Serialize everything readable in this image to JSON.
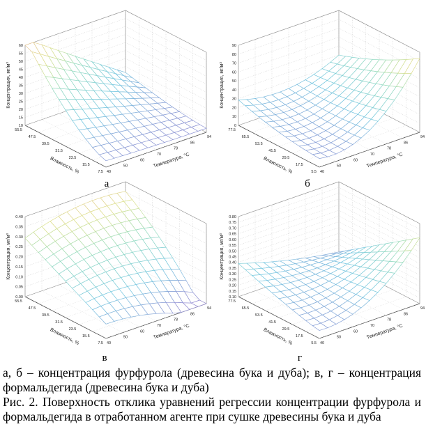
{
  "figure": {
    "panels": [
      {
        "id": "a",
        "label": "а",
        "zlabel": "Концентрация, мг/м³",
        "xlabel": "Температура, °С",
        "ylabel": "Влажность, %",
        "z_ticks": [
          "60",
          "55",
          "50",
          "45",
          "40",
          "35",
          "30",
          "25",
          "20",
          "15",
          "10"
        ],
        "x_ticks": [
          "40",
          "50",
          "60",
          "70",
          "78",
          "86",
          "94"
        ],
        "y_ticks": [
          "55.5",
          "47.5",
          "39.5",
          "31.5",
          "23.5",
          "15.5",
          "7.5"
        ],
        "surface": {
          "type": "tilt",
          "z_range": [
            10,
            60
          ]
        }
      },
      {
        "id": "b",
        "label": "б",
        "zlabel": "Концентрация, мг/м³",
        "xlabel": "Температура, °С",
        "ylabel": "Влажность, %",
        "z_ticks": [
          "90",
          "80",
          "70",
          "60",
          "50",
          "40",
          "30",
          "20",
          "10",
          "0"
        ],
        "x_ticks": [
          "40",
          "50",
          "60",
          "70",
          "78",
          "86",
          "94"
        ],
        "y_ticks": [
          "77.5",
          "65.5",
          "53.5",
          "41.5",
          "29.5",
          "17.5",
          "5.5"
        ],
        "surface": {
          "type": "bowl",
          "z_range": [
            0,
            90
          ]
        }
      },
      {
        "id": "v",
        "label": "в",
        "zlabel": "Концентрация, мг/м³",
        "xlabel": "Температура, °С",
        "ylabel": "Влажность, %",
        "z_ticks": [
          "0.40",
          "0.35",
          "0.30",
          "0.25",
          "0.20",
          "0.15",
          "0.10",
          "0.05",
          "0.00"
        ],
        "x_ticks": [
          "40",
          "50",
          "60",
          "70",
          "78",
          "86",
          "94"
        ],
        "y_ticks": [
          "55.5",
          "47.5",
          "39.5",
          "31.5",
          "23.5",
          "15.5",
          "7.5"
        ],
        "surface": {
          "type": "dome",
          "z_range": [
            0,
            0.4
          ]
        }
      },
      {
        "id": "g",
        "label": "г",
        "zlabel": "Концентрация, мг/м³",
        "xlabel": "Температура, °С",
        "ylabel": "Влажность, %",
        "z_ticks": [
          "0.80",
          "0.75",
          "0.70",
          "0.65",
          "0.60",
          "0.55",
          "0.50",
          "0.45",
          "0.40",
          "0.35",
          "0.30",
          "0.25",
          "0.20",
          "0.15",
          "0.10"
        ],
        "x_ticks": [
          "40",
          "50",
          "60",
          "70",
          "78",
          "86",
          "94"
        ],
        "y_ticks": [
          "77.5",
          "65.5",
          "53.5",
          "41.5",
          "29.5",
          "17.5",
          "5.5"
        ],
        "surface": {
          "type": "bowl2",
          "z_range": [
            0.1,
            0.8
          ]
        }
      }
    ]
  },
  "caption": {
    "line1": "а, б – концентрация фурфурола (древесина бука и дуба); в, г – концентрация формальдегида (древесина бука и дуба)",
    "line2": "Рис. 2. Поверхность отклика уравнений регрессии концентрации фурфурола и формальдегида в отработанном агенте при сушке древесины бука и дуба"
  }
}
